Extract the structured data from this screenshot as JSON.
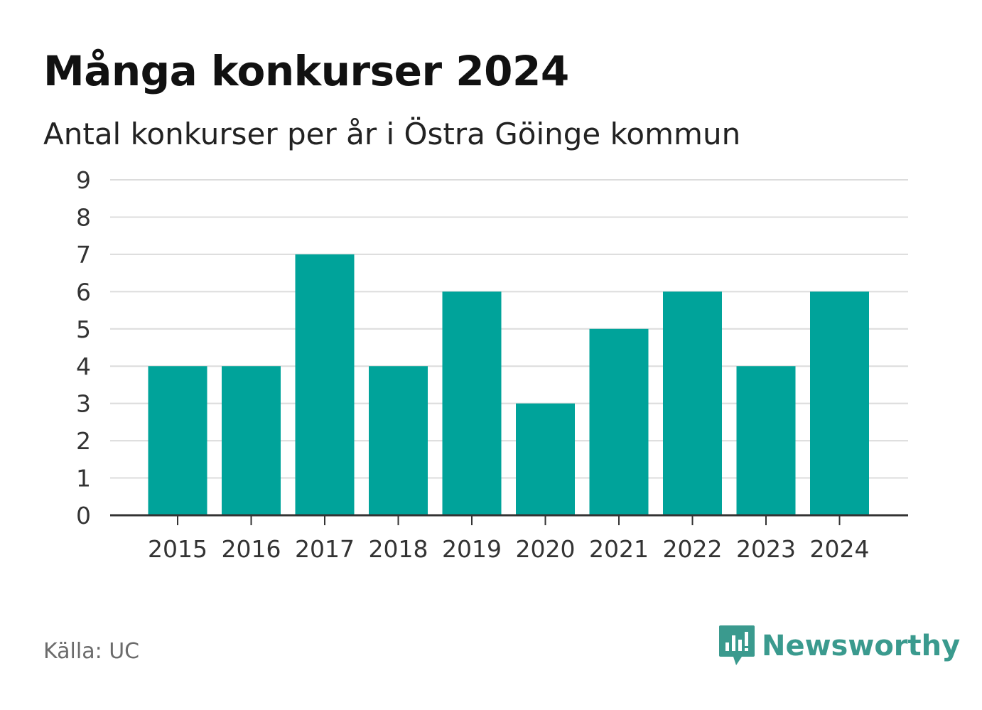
{
  "header": {
    "title": "Många konkurser 2024",
    "subtitle": "Antal konkurser per år i Östra Göinge kommun"
  },
  "footer": {
    "source": "Källa: UC",
    "brand": "Newsworthy"
  },
  "colors": {
    "bar": "#00a39a",
    "grid": "#dcdcdc",
    "axis": "#333333",
    "brand": "#3a9a8e"
  },
  "chart_data": {
    "type": "bar",
    "title": "Många konkurser 2024",
    "subtitle": "Antal konkurser per år i Östra Göinge kommun",
    "xlabel": "",
    "ylabel": "",
    "categories": [
      "2015",
      "2016",
      "2017",
      "2018",
      "2019",
      "2020",
      "2021",
      "2022",
      "2023",
      "2024"
    ],
    "values": [
      4,
      4,
      7,
      4,
      6,
      3,
      5,
      6,
      4,
      6
    ],
    "ylim": [
      0,
      9
    ],
    "yticks": [
      0,
      1,
      2,
      3,
      4,
      5,
      6,
      7,
      8,
      9
    ],
    "grid": true,
    "legend": "none"
  }
}
